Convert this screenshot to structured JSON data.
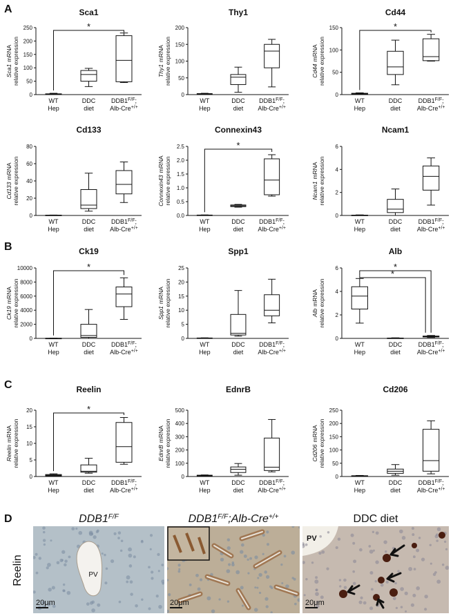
{
  "panel_labels": [
    "A",
    "B",
    "C",
    "D"
  ],
  "chart_data": [
    {
      "type": "box",
      "title": "Sca1",
      "ylabel": [
        "Sca1",
        "mRNA",
        "relative expression"
      ],
      "categories": [
        [
          [
            "WT"
          ],
          [
            "Hep"
          ]
        ],
        [
          [
            "DDC"
          ],
          [
            "diet"
          ]
        ],
        [
          [
            "DDB1",
            "F/F",
            ";"
          ],
          [
            "Alb-Cre",
            "+/+"
          ]
        ]
      ],
      "boxes": [
        {
          "min": 0,
          "q1": 1,
          "median": 2,
          "q3": 3,
          "max": 5
        },
        {
          "min": 30,
          "q1": 50,
          "median": 75,
          "q3": 90,
          "max": 98
        },
        {
          "min": 45,
          "q1": 48,
          "median": 128,
          "q3": 220,
          "max": 230
        }
      ],
      "ylim": [
        0,
        250
      ],
      "yticks": [
        0,
        50,
        100,
        150,
        200,
        250
      ],
      "significance": [
        {
          "from": 0,
          "to": 2,
          "label": "*"
        }
      ]
    },
    {
      "type": "box",
      "title": "Thy1",
      "ylabel": [
        "Thy1",
        "mRNA",
        "relative expression"
      ],
      "categories": [
        [
          [
            "WT"
          ],
          [
            "Hep"
          ]
        ],
        [
          [
            "DDC"
          ],
          [
            "diet"
          ]
        ],
        [
          [
            "DDB1",
            "F/F",
            ";"
          ],
          [
            "Alb-Cre",
            "+/+"
          ]
        ]
      ],
      "boxes": [
        {
          "min": 0,
          "q1": 1,
          "median": 2,
          "q3": 3,
          "max": 4
        },
        {
          "min": 7,
          "q1": 30,
          "median": 52,
          "q3": 60,
          "max": 82
        },
        {
          "min": 23,
          "q1": 80,
          "median": 130,
          "q3": 150,
          "max": 165
        }
      ],
      "ylim": [
        0,
        200
      ],
      "yticks": [
        0,
        50,
        100,
        150,
        200
      ],
      "significance": []
    },
    {
      "type": "box",
      "title": "Cd44",
      "ylabel": [
        "Cd44",
        "mRNA",
        "relative expression"
      ],
      "categories": [
        [
          [
            "WT"
          ],
          [
            "Hep"
          ]
        ],
        [
          [
            "DDC"
          ],
          [
            "diet"
          ]
        ],
        [
          [
            "DDB1",
            "F/F",
            ";"
          ],
          [
            "Alb-Cre",
            "+/+"
          ]
        ]
      ],
      "boxes": [
        {
          "min": 0,
          "q1": 1,
          "median": 2,
          "q3": 3,
          "max": 4
        },
        {
          "min": 22,
          "q1": 45,
          "median": 62,
          "q3": 97,
          "max": 122
        },
        {
          "min": 75,
          "q1": 76,
          "median": 85,
          "q3": 125,
          "max": 135
        }
      ],
      "ylim": [
        0,
        150
      ],
      "yticks": [
        0,
        50,
        100,
        150
      ],
      "significance": [
        {
          "from": 0,
          "to": 2,
          "label": "*"
        }
      ]
    },
    {
      "type": "box",
      "title": "Cd133",
      "ylabel": [
        "Cd133",
        "mRNA",
        "relative expression"
      ],
      "categories": [
        [
          [
            "WT"
          ],
          [
            "Hep"
          ]
        ],
        [
          [
            "DDC"
          ],
          [
            "diet"
          ]
        ],
        [
          [
            "DDB1",
            "F/F",
            ";"
          ],
          [
            "Alb-Cre",
            "+/+"
          ]
        ]
      ],
      "boxes": [
        {
          "min": 0,
          "q1": 0,
          "median": 0.2,
          "q3": 0.4,
          "max": 0.5
        },
        {
          "min": 5,
          "q1": 8,
          "median": 12,
          "q3": 30,
          "max": 49
        },
        {
          "min": 15,
          "q1": 25,
          "median": 36,
          "q3": 52,
          "max": 62
        }
      ],
      "ylim": [
        0,
        80
      ],
      "yticks": [
        0,
        20,
        40,
        60,
        80
      ],
      "significance": []
    },
    {
      "type": "box",
      "title": "Connexin43",
      "ylabel": [
        "Connexin43",
        "mRNA",
        "relative expression"
      ],
      "categories": [
        [
          [
            "WT"
          ],
          [
            "Hep"
          ]
        ],
        [
          [
            "DDC"
          ],
          [
            "diet"
          ]
        ],
        [
          [
            "DDB1",
            "F/F",
            ";"
          ],
          [
            "Alb-Cre",
            "+/+"
          ]
        ]
      ],
      "boxes": [
        {
          "min": 0,
          "q1": 0.005,
          "median": 0.01,
          "q3": 0.015,
          "max": 0.02
        },
        {
          "min": 0.3,
          "q1": 0.32,
          "median": 0.35,
          "q3": 0.38,
          "max": 0.4
        },
        {
          "min": 0.7,
          "q1": 0.75,
          "median": 1.28,
          "q3": 2.05,
          "max": 2.2
        }
      ],
      "ylim": [
        0,
        2.5
      ],
      "yticks": [
        {
          "value": 0,
          "label": "0.0"
        },
        0.5,
        {
          "value": 1,
          "label": "1.0"
        },
        1.5,
        {
          "value": 2,
          "label": "2.0"
        },
        2.5
      ],
      "significance": [
        {
          "from": 0,
          "to": 2,
          "label": "*"
        }
      ]
    },
    {
      "type": "box",
      "title": "Ncam1",
      "ylabel": [
        "Ncam1",
        "mRNA",
        "relative expression"
      ],
      "categories": [
        [
          [
            "WT"
          ],
          [
            "Hep"
          ]
        ],
        [
          [
            "DDC"
          ],
          [
            "diet"
          ]
        ],
        [
          [
            "DDB1",
            "F/F",
            ";"
          ],
          [
            "Alb-Cre",
            "+/+"
          ]
        ]
      ],
      "boxes": [
        {
          "min": 0,
          "q1": 0.01,
          "median": 0.02,
          "q3": 0.03,
          "max": 0.05
        },
        {
          "min": 0,
          "q1": 0.25,
          "median": 0.55,
          "q3": 1.4,
          "max": 2.3
        },
        {
          "min": 0.9,
          "q1": 2.2,
          "median": 3.4,
          "q3": 4.3,
          "max": 5
        }
      ],
      "ylim": [
        0,
        6
      ],
      "yticks": [
        0,
        2,
        4,
        6
      ],
      "significance": []
    },
    {
      "type": "box",
      "title": "Ck19",
      "ylabel": [
        "Ck19",
        "mRNA",
        "relative expression"
      ],
      "categories": [
        [
          [
            "WT"
          ],
          [
            "Hep"
          ]
        ],
        [
          [
            "DDC"
          ],
          [
            "diet"
          ]
        ],
        [
          [
            "DDB1",
            "F/F",
            ";"
          ],
          [
            "Alb-Cre",
            "+/+"
          ]
        ]
      ],
      "boxes": [
        {
          "min": 0,
          "q1": 5,
          "median": 10,
          "q3": 20,
          "max": 30
        },
        {
          "min": 0,
          "q1": 150,
          "median": 400,
          "q3": 2000,
          "max": 4100
        },
        {
          "min": 2700,
          "q1": 4500,
          "median": 6300,
          "q3": 7300,
          "max": 8600
        }
      ],
      "ylim": [
        0,
        10000
      ],
      "yticks": [
        0,
        2000,
        4000,
        6000,
        8000,
        10000
      ],
      "significance": [
        {
          "from": 0,
          "to": 2,
          "label": "*"
        }
      ]
    },
    {
      "type": "box",
      "title": "Spp1",
      "ylabel": [
        "Spp1",
        "mRNA",
        "relative expression"
      ],
      "categories": [
        [
          [
            "WT"
          ],
          [
            "Hep"
          ]
        ],
        [
          [
            "DDC"
          ],
          [
            "diet"
          ]
        ],
        [
          [
            "DDB1",
            "F/F",
            ";"
          ],
          [
            "Alb-Cre",
            "+/+"
          ]
        ]
      ],
      "boxes": [
        {
          "min": 0,
          "q1": 0.05,
          "median": 0.1,
          "q3": 0.15,
          "max": 0.2
        },
        {
          "min": 0.8,
          "q1": 1.2,
          "median": 1.8,
          "q3": 8.5,
          "max": 17
        },
        {
          "min": 5.5,
          "q1": 8,
          "median": 10,
          "q3": 15.5,
          "max": 21
        }
      ],
      "ylim": [
        0,
        25
      ],
      "yticks": [
        0,
        5,
        10,
        15,
        20,
        25
      ],
      "significance": []
    },
    {
      "type": "box",
      "title": "Alb",
      "ylabel": [
        "Alb",
        "mRNA",
        "relative expression"
      ],
      "categories": [
        [
          [
            "WT"
          ],
          [
            "Hep"
          ]
        ],
        [
          [
            "DDC"
          ],
          [
            "diet"
          ]
        ],
        [
          [
            "DDB1",
            "F/F",
            ";"
          ],
          [
            "Alb-Cre",
            "+/+"
          ]
        ]
      ],
      "boxes": [
        {
          "min": 1.3,
          "q1": 2.5,
          "median": 3.6,
          "q3": 4.4,
          "max": 5.1
        },
        {
          "min": 0,
          "q1": 0.01,
          "median": 0.02,
          "q3": 0.03,
          "max": 0.05
        },
        {
          "min": 0.08,
          "q1": 0.12,
          "median": 0.16,
          "q3": 0.2,
          "max": 0.25
        }
      ],
      "ylim": [
        0,
        6
      ],
      "yticks": [
        0,
        2,
        4,
        6
      ],
      "significance": [
        {
          "from": 0,
          "to": 2,
          "label": "*"
        },
        {
          "from": 0,
          "to": 2,
          "label": "*"
        }
      ]
    },
    {
      "type": "box",
      "title": "Reelin",
      "ylabel": [
        "Reelin",
        "mRNA",
        "relative expression"
      ],
      "categories": [
        [
          [
            "WT"
          ],
          [
            "Hep"
          ]
        ],
        [
          [
            "DDC"
          ],
          [
            "diet"
          ]
        ],
        [
          [
            "DDB1",
            "F/F",
            ";"
          ],
          [
            "Alb-Cre",
            "+/+"
          ]
        ]
      ],
      "boxes": [
        {
          "min": 0,
          "q1": 0.2,
          "median": 0.4,
          "q3": 0.6,
          "max": 0.8
        },
        {
          "min": 1,
          "q1": 1.3,
          "median": 1.6,
          "q3": 3.5,
          "max": 5.5
        },
        {
          "min": 3.7,
          "q1": 4.3,
          "median": 9,
          "q3": 16.3,
          "max": 17.8
        }
      ],
      "ylim": [
        0,
        20
      ],
      "yticks": [
        0,
        5,
        10,
        15,
        20
      ],
      "significance": [
        {
          "from": 0,
          "to": 2,
          "label": "*"
        }
      ]
    },
    {
      "type": "box",
      "title": "EdnrB",
      "ylabel": [
        "EdnrB",
        "mRNA",
        "relative expression"
      ],
      "categories": [
        [
          [
            "WT"
          ],
          [
            "Hep"
          ]
        ],
        [
          [
            "DDC"
          ],
          [
            "diet"
          ]
        ],
        [
          [
            "DDB1",
            "F/F",
            ";"
          ],
          [
            "Alb-Cre",
            "+/+"
          ]
        ]
      ],
      "boxes": [
        {
          "min": 3,
          "q1": 5,
          "median": 8,
          "q3": 10,
          "max": 12
        },
        {
          "min": 10,
          "q1": 30,
          "median": 55,
          "q3": 72,
          "max": 98
        },
        {
          "min": 35,
          "q1": 45,
          "median": 70,
          "q3": 290,
          "max": 430
        }
      ],
      "ylim": [
        0,
        500
      ],
      "yticks": [
        0,
        100,
        200,
        300,
        400,
        500
      ],
      "significance": []
    },
    {
      "type": "box",
      "title": "Cd206",
      "ylabel": [
        "Cd206",
        "mRNA",
        "relative expression"
      ],
      "categories": [
        [
          [
            "WT"
          ],
          [
            "Hep"
          ]
        ],
        [
          [
            "DDC"
          ],
          [
            "diet"
          ]
        ],
        [
          [
            "DDB1",
            "F/F",
            ";"
          ],
          [
            "Alb-Cre",
            "+/+"
          ]
        ]
      ],
      "boxes": [
        {
          "min": 0,
          "q1": 1,
          "median": 2,
          "q3": 3,
          "max": 4
        },
        {
          "min": 5,
          "q1": 12,
          "median": 20,
          "q3": 28,
          "max": 45
        },
        {
          "min": 10,
          "q1": 20,
          "median": 60,
          "q3": 178,
          "max": 210
        }
      ],
      "ylim": [
        0,
        250
      ],
      "yticks": [
        0,
        50,
        100,
        150,
        200,
        250
      ],
      "significance": []
    }
  ],
  "micrographs": {
    "row_label": "Reelin",
    "panels": [
      {
        "title": [
          "DDB1",
          "F/F"
        ],
        "labels": [
          "PV"
        ],
        "scale": "20μm"
      },
      {
        "title": [
          "DDB1",
          "F/F",
          ";Alb-Cre",
          "+/+"
        ],
        "labels": [],
        "scale": "20μm"
      },
      {
        "title": [
          "DDC diet"
        ],
        "labels": [
          "PV"
        ],
        "scale": "20μm"
      }
    ]
  }
}
